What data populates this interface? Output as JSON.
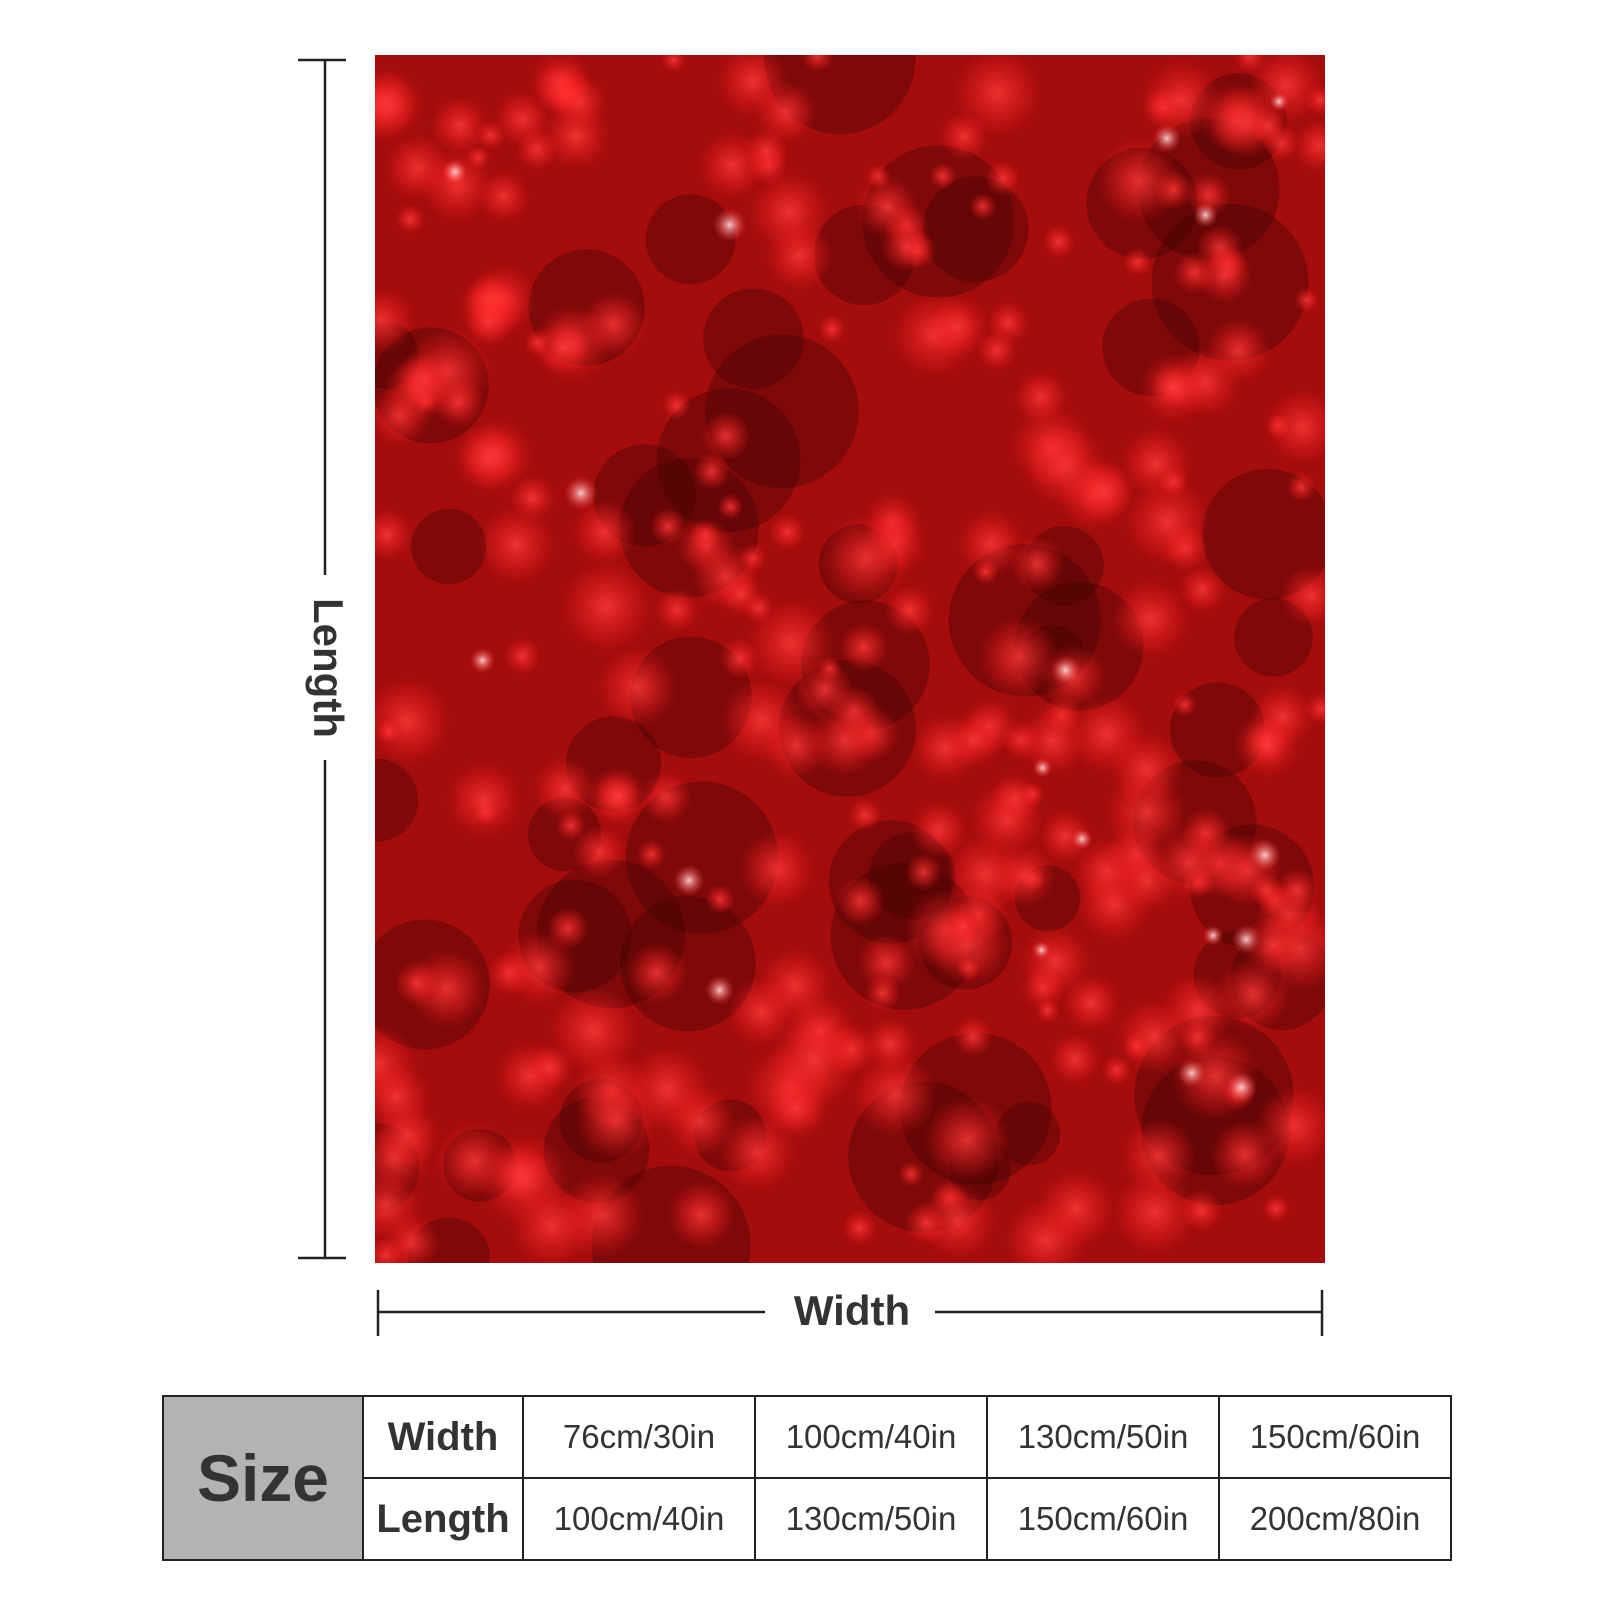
{
  "diagram": {
    "length_label": "Length",
    "width_label": "Width"
  },
  "table": {
    "header": "Size",
    "rows": [
      [
        "Width",
        "76cm/30in",
        "100cm/40in",
        "130cm/50in",
        "150cm/60in"
      ],
      [
        "Length",
        "100cm/40in",
        "130cm/50in",
        "150cm/60in",
        "200cm/80in"
      ]
    ]
  }
}
